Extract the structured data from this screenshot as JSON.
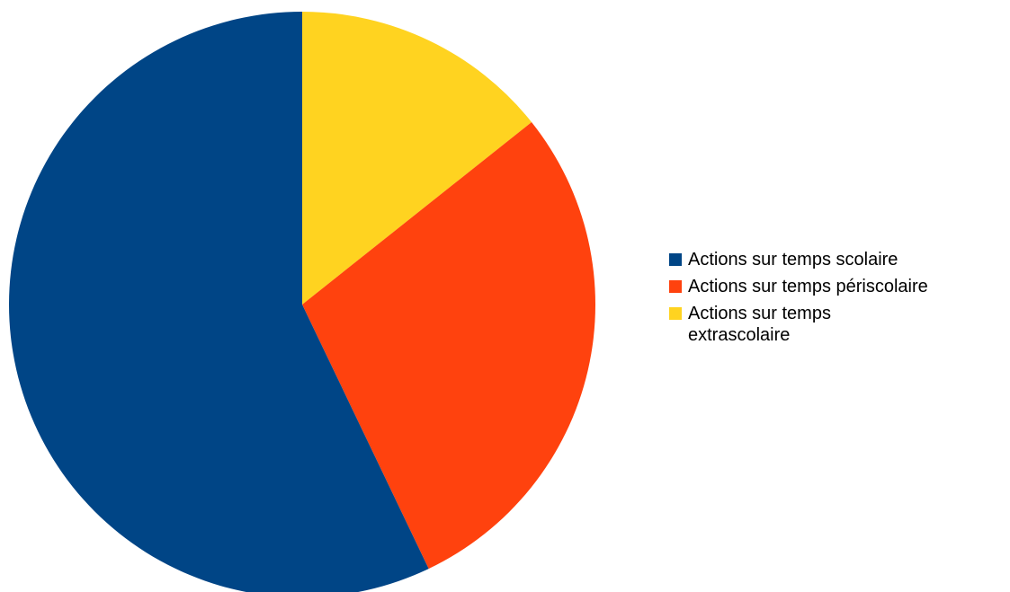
{
  "chart_data": {
    "type": "pie",
    "title": "",
    "start": "12 o'clock",
    "direction": "clockwise",
    "slices": [
      {
        "label": "Actions sur temps extrascolaire",
        "value": 14.3,
        "color": "#FFD320"
      },
      {
        "label": "Actions sur temps périscolaire",
        "value": 28.6,
        "color": "#FF420E"
      },
      {
        "label": "Actions sur temps scolaire",
        "value": 57.1,
        "color": "#004586"
      }
    ],
    "legend": {
      "placement": "right",
      "order": [
        2,
        1,
        0
      ]
    }
  }
}
